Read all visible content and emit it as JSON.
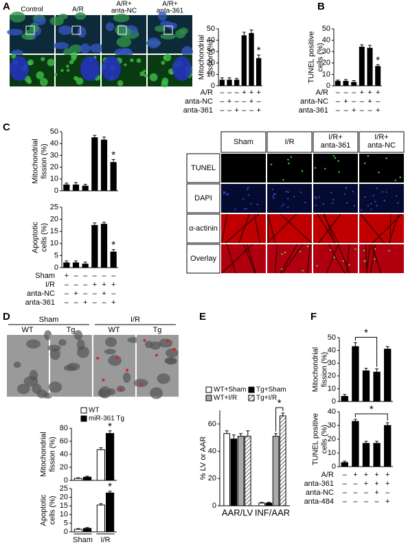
{
  "panel_labels": [
    "A",
    "B",
    "C",
    "D",
    "E",
    "F"
  ],
  "panel_a_images": {
    "columns": [
      [
        "Control"
      ],
      [
        "A/R"
      ],
      [
        "A/R+",
        "anta-NC"
      ],
      [
        "A/R+",
        "anta-361"
      ]
    ]
  },
  "panel_c_images": {
    "columns": [
      [
        "Sham"
      ],
      [
        "I/R"
      ],
      [
        "I/R+",
        "anta-361"
      ],
      [
        "I/R+",
        "anta-NC"
      ]
    ],
    "rows": [
      "TUNEL",
      "DAPI",
      "α-actinin",
      "Overlay"
    ]
  },
  "panel_d_images": {
    "groups": [
      "Sham",
      "I/R"
    ],
    "columns": [
      "WT",
      "Tg",
      "WT",
      "Tg"
    ]
  },
  "chart_data": [
    {
      "type": "bar",
      "y_label": [
        "Mitochondrial",
        "fission (%)"
      ],
      "ylim": [
        0,
        50
      ],
      "yticks": [
        0,
        10,
        20,
        30,
        40,
        50
      ],
      "color": "#000000",
      "values": [
        5,
        5,
        5,
        44,
        46,
        24
      ],
      "errors": [
        2,
        2,
        1.5,
        3,
        3,
        3
      ],
      "annotation": "*",
      "conditions": [
        {
          "label": "A/R",
          "signs": [
            "–",
            "–",
            "–",
            "+",
            "+",
            "+"
          ]
        },
        {
          "label": "anta-NC",
          "signs": [
            "–",
            "+",
            "–",
            "–",
            "+",
            "–"
          ]
        },
        {
          "label": "anta-361",
          "signs": [
            "–",
            "–",
            "+",
            "–",
            "–",
            "+"
          ]
        }
      ]
    },
    {
      "type": "bar",
      "y_label": [
        "TUNEL positive",
        "cells (%)"
      ],
      "ylim": [
        0,
        50
      ],
      "yticks": [
        0,
        10,
        20,
        30,
        40,
        50
      ],
      "color": "#000000",
      "values": [
        4,
        4,
        3,
        34,
        33,
        17
      ],
      "errors": [
        1,
        1.5,
        1.5,
        2,
        2.5,
        1.5
      ],
      "annotation": "*",
      "conditions": [
        {
          "label": "A/R",
          "signs": [
            "–",
            "–",
            "–",
            "+",
            "+",
            "+"
          ]
        },
        {
          "label": "anta-NC",
          "signs": [
            "–",
            "+",
            "–",
            "–",
            "+",
            "–"
          ]
        },
        {
          "label": "anta-361",
          "signs": [
            "–",
            "–",
            "+",
            "–",
            "–",
            "+"
          ]
        }
      ]
    },
    {
      "type": "bar",
      "y_label": [
        "Mitochondrial",
        "fission (%)"
      ],
      "ylim": [
        0,
        50
      ],
      "yticks": [
        0,
        10,
        20,
        30,
        40,
        50
      ],
      "color": "#000000",
      "values": [
        5,
        5,
        4,
        45,
        43,
        24
      ],
      "errors": [
        1.5,
        2,
        1.5,
        2,
        2.5,
        2.5
      ],
      "annotation": "*"
    },
    {
      "type": "bar",
      "y_label": [
        "Apoptotic",
        "cells (%)"
      ],
      "ylim": [
        0,
        25
      ],
      "yticks": [
        0,
        5,
        10,
        15,
        20,
        25
      ],
      "color": "#000000",
      "values": [
        2,
        2,
        1.5,
        17.5,
        18,
        6.5
      ],
      "errors": [
        0.8,
        0.8,
        0.8,
        1,
        0.8,
        1
      ],
      "annotation": "*",
      "conditions": [
        {
          "label": "Sham",
          "signs": [
            "+",
            "–",
            "–",
            "–",
            "–",
            "–"
          ]
        },
        {
          "label": "I/R",
          "signs": [
            "–",
            "–",
            "–",
            "+",
            "+",
            "+"
          ]
        },
        {
          "label": "anta-NC",
          "signs": [
            "–",
            "+",
            "–",
            "–",
            "+",
            "–"
          ]
        },
        {
          "label": "anta-361",
          "signs": [
            "–",
            "–",
            "+",
            "–",
            "–",
            "+"
          ]
        }
      ]
    },
    {
      "type": "grouped-bar",
      "y_label": [
        "Mitochondrial",
        "fission (%)"
      ],
      "ylim": [
        0,
        80
      ],
      "yticks": [
        0,
        20,
        40,
        60,
        80
      ],
      "annotation": "*",
      "series": [
        {
          "name": "WT",
          "color": "#ffffff",
          "values": [
            3,
            47
          ],
          "errors": [
            1,
            3
          ]
        },
        {
          "name": "miR-361 Tg",
          "color": "#000000",
          "values": [
            5,
            72
          ],
          "errors": [
            1.5,
            4
          ]
        }
      ]
    },
    {
      "type": "grouped-bar",
      "y_label": [
        "Apoptotic",
        "cells (%)"
      ],
      "ylim": [
        0,
        25
      ],
      "yticks": [
        0,
        5,
        10,
        15,
        20,
        25
      ],
      "annotation": "*",
      "categories": [
        "Sham",
        "I/R"
      ],
      "series": [
        {
          "color": "#ffffff",
          "values": [
            1.5,
            15.5
          ],
          "errors": [
            0.4,
            0.8
          ]
        },
        {
          "color": "#000000",
          "values": [
            2,
            22.5
          ],
          "errors": [
            0.5,
            1
          ]
        }
      ]
    },
    {
      "type": "grouped-bar",
      "y_label": [
        "% LV or AAR"
      ],
      "ylim": [
        0,
        70
      ],
      "yticks": [
        0,
        20,
        40,
        60
      ],
      "annotation": "*",
      "categories": [
        "AAR/LV",
        "INF/AAR"
      ],
      "series": [
        {
          "name": "WT+Sham",
          "color": "#ffffff",
          "values": [
            53,
            2
          ],
          "errors": [
            2,
            0.5
          ]
        },
        {
          "name": "Tg+Sham",
          "color": "#000000",
          "values": [
            49,
            2
          ],
          "errors": [
            3,
            0.5
          ]
        },
        {
          "name": "WT+I/R",
          "color": "#aaaaaa",
          "values": [
            51,
            51
          ],
          "errors": [
            2,
            2
          ]
        },
        {
          "name": "Tg+I/R",
          "color": "#ffffff",
          "hatch": true,
          "values": [
            51,
            66
          ],
          "errors": [
            4,
            2
          ]
        }
      ]
    },
    {
      "type": "bar",
      "y_label": [
        "Mitochondrial",
        "fission (%)"
      ],
      "ylim": [
        0,
        50
      ],
      "yticks": [
        0,
        10,
        20,
        30,
        40,
        50
      ],
      "color": "#000000",
      "values": [
        4,
        43,
        24,
        23,
        41
      ],
      "errors": [
        1.5,
        3,
        2,
        2.5,
        2
      ],
      "annotation": "*"
    },
    {
      "type": "bar",
      "y_label": [
        "TUNEL positive",
        "cells (%)"
      ],
      "ylim": [
        0,
        40
      ],
      "yticks": [
        0,
        10,
        20,
        30,
        40
      ],
      "color": "#000000",
      "values": [
        3,
        33,
        17,
        17,
        30
      ],
      "errors": [
        1,
        1.5,
        1.5,
        1.5,
        2
      ],
      "annotation": "*",
      "conditions": [
        {
          "label": "A/R",
          "signs": [
            "–",
            "+",
            "+",
            "+",
            "+"
          ]
        },
        {
          "label": "anta-361",
          "signs": [
            "–",
            "–",
            "+",
            "+",
            "+"
          ]
        },
        {
          "label": "anta-NC",
          "signs": [
            "–",
            "–",
            "–",
            "+",
            "–"
          ]
        },
        {
          "label": "anta-484",
          "signs": [
            "–",
            "–",
            "–",
            "–",
            "+"
          ]
        }
      ]
    }
  ]
}
